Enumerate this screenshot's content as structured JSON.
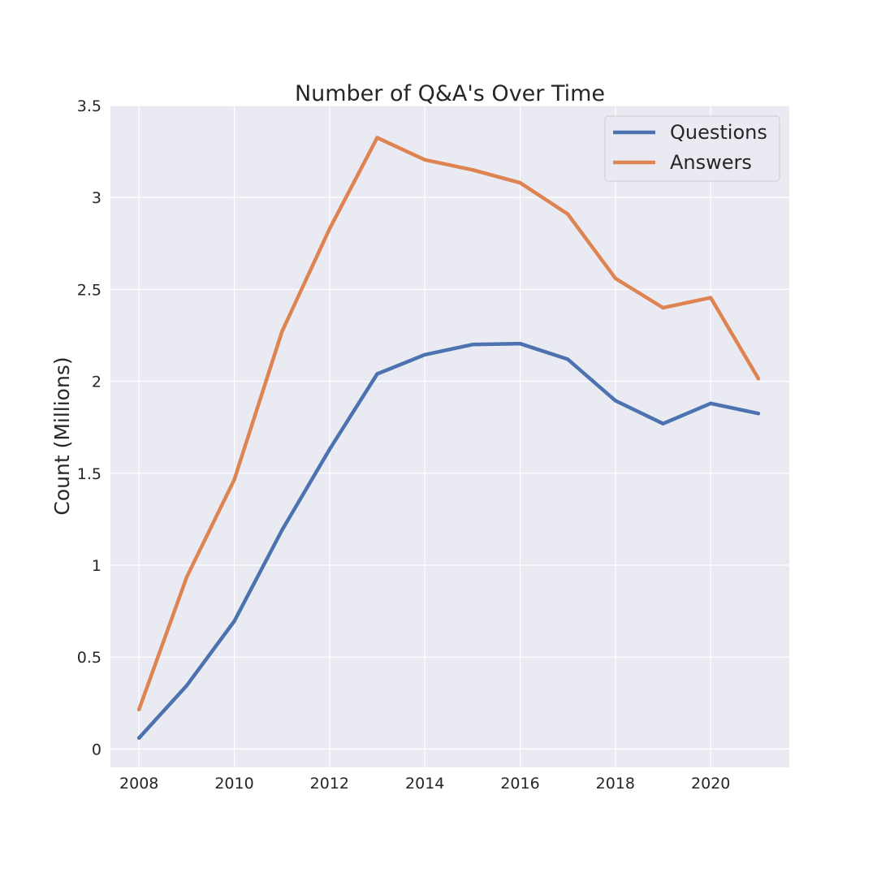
{
  "chart_data": {
    "type": "line",
    "title": "Number of Q&A's Over Time",
    "xlabel": "",
    "ylabel": "Count (Millions)",
    "x": [
      2008,
      2009,
      2010,
      2011,
      2012,
      2013,
      2014,
      2015,
      2016,
      2017,
      2018,
      2019,
      2020,
      2021
    ],
    "xlim": [
      2007.4,
      2021.65
    ],
    "ylim": [
      -0.1,
      3.5
    ],
    "xticks": [
      2008,
      2010,
      2012,
      2014,
      2016,
      2018,
      2020
    ],
    "xtick_labels": [
      "2008",
      "2010",
      "2012",
      "2014",
      "2016",
      "2018",
      "2020"
    ],
    "yticks": [
      0,
      0.5,
      1,
      1.5,
      2,
      2.5,
      3,
      3.5
    ],
    "ytick_labels": [
      "0",
      "0.5",
      "1",
      "1.5",
      "2",
      "2.5",
      "3",
      "3.5"
    ],
    "grid": true,
    "legend_position": "top-right",
    "background": "#eaeaf2",
    "series": [
      {
        "name": "Questions",
        "color": "#4c72b0",
        "values": [
          0.06,
          0.345,
          0.695,
          1.19,
          1.63,
          2.04,
          2.145,
          2.2,
          2.205,
          2.12,
          1.895,
          1.77,
          1.88,
          1.825
        ]
      },
      {
        "name": "Answers",
        "color": "#dd8452",
        "values": [
          0.215,
          0.935,
          1.465,
          2.27,
          2.83,
          3.325,
          3.205,
          3.15,
          3.08,
          2.91,
          2.56,
          2.4,
          2.455,
          2.015
        ]
      }
    ]
  }
}
